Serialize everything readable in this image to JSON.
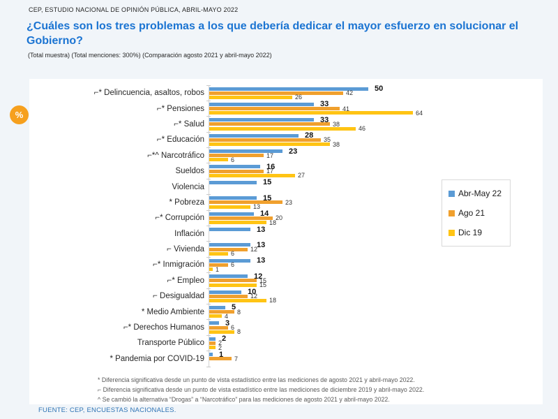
{
  "page": {
    "eyebrow": "CEP, ESTUDIO NACIONAL DE OPINIÓN PÚBLICA, ABRIL-MAYO 2022",
    "title": "¿Cuáles son los tres problemas a los que debería dedicar el mayor esfuerzo en solucionar el Gobierno?",
    "subtitle": "(Total muestra) (Total menciones: 300%) (Comparación agosto 2021 y abril-mayo 2022)",
    "percent_badge": "%",
    "source": "FUENTE: CEP, ENCUESTAS NACIONALES."
  },
  "chart_data": {
    "type": "bar",
    "orientation": "horizontal",
    "title": "¿Cuáles son los tres problemas a los que debería dedicar el mayor esfuerzo en solucionar el Gobierno?",
    "xlim": [
      0,
      70
    ],
    "grid": false,
    "legend_position": "right",
    "value_labels": true,
    "categories": [
      "⌐* Delincuencia, asaltos, robos",
      "⌐* Pensiones",
      "⌐* Salud",
      "⌐* Educación",
      "⌐*^ Narcotráfico",
      "Sueldos",
      "Violencia",
      "* Pobreza",
      "⌐* Corrupción",
      "Inflación",
      "⌐ Vivienda",
      "⌐* Inmigración",
      "⌐* Empleo",
      "⌐ Desigualdad",
      "* Medio Ambiente",
      "⌐* Derechos Humanos",
      "Transporte Público",
      "* Pandemia por COVID-19"
    ],
    "series": [
      {
        "name": "Abr-May 22",
        "color": "#5B9BD5",
        "values": [
          50,
          33,
          33,
          28,
          23,
          16,
          15,
          15,
          14,
          13,
          13,
          13,
          12,
          10,
          5,
          3,
          2,
          1
        ]
      },
      {
        "name": "Ago 21",
        "color": "#F0A02E",
        "values": [
          42,
          41,
          38,
          35,
          17,
          17,
          null,
          23,
          20,
          null,
          12,
          6,
          15,
          12,
          8,
          6,
          2,
          7
        ]
      },
      {
        "name": "Dic 19",
        "color": "#FFC414",
        "values": [
          26,
          64,
          46,
          38,
          6,
          27,
          null,
          13,
          18,
          null,
          6,
          1,
          15,
          18,
          4,
          8,
          2,
          null
        ]
      }
    ]
  },
  "footnotes": [
    "* Diferencia significativa desde un punto de vista estadístico entre las mediciones de agosto 2021 y abril-mayo 2022.",
    "⌐ Diferencia significativa desde un punto de vista estadístico entre las mediciones de diciembre 2019 y abril-mayo 2022.",
    "^ Se cambió la alternativa “Drogas” a “Narcotráfico” para las mediciones de agosto 2021 y abril-mayo 2022."
  ]
}
